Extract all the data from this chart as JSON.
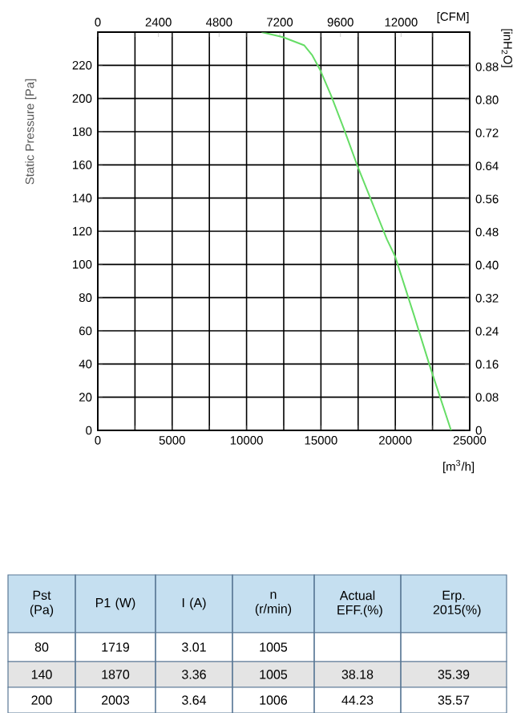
{
  "chart_data": {
    "type": "line",
    "x": [
      11012,
      12447,
      13882,
      14420,
      14958,
      15675,
      16572,
      17469,
      18545,
      19442,
      19980,
      21235,
      22311,
      23746
    ],
    "series": [
      {
        "color": "#66dd66",
        "values": [
          240,
          237,
          232,
          226,
          217,
          202,
          181,
          159,
          135,
          115,
          105,
          70,
          39,
          0
        ]
      }
    ],
    "xlim": [
      0,
      25000
    ],
    "xticks": [
      0,
      {
        "value": 2500,
        "label": null
      },
      5000,
      {
        "value": 7500,
        "label": null
      },
      10000,
      {
        "value": 12500,
        "label": null
      },
      15000,
      {
        "value": 17500,
        "label": null
      },
      20000,
      {
        "value": 22500,
        "label": null
      },
      25000
    ],
    "ylim": [
      0,
      240
    ],
    "yticks": [
      0,
      20,
      40,
      60,
      80,
      100,
      120,
      140,
      160,
      180,
      200,
      220,
      {
        "value": 240,
        "label": null
      }
    ],
    "x2lim": [
      0,
      14714
    ],
    "x2ticks": [
      0,
      2400,
      4800,
      7200,
      9600,
      12000
    ],
    "y2lim": [
      0,
      0.964
    ],
    "y2ticks": [
      0,
      0.08,
      0.16,
      0.24,
      0.32,
      {
        "value": 0.4,
        "label": "0.40"
      },
      0.48,
      0.56,
      0.64,
      0.72,
      {
        "value": 0.8,
        "label": "0.80"
      },
      0.88
    ],
    "xlabel": "[m$^{3}$/h]",
    "ylabel": "Static Pressure [Pa]",
    "x2label": "[CFM]",
    "y2label": "[inH$_{2}$O]",
    "grid": true,
    "annotations": [
      "Pst (Pa)",
      "P1 (W)",
      "I (A)",
      "n (r/min)",
      "Actual EFF.(%)",
      "Erp. 2015(%)",
      "80",
      "1719",
      "3.01",
      "1005",
      "140",
      "1870",
      "3.36",
      "1005",
      "38.18",
      "35.39",
      "200",
      "2003",
      "3.64",
      "1006",
      "44.23",
      "35.57"
    ]
  }
}
